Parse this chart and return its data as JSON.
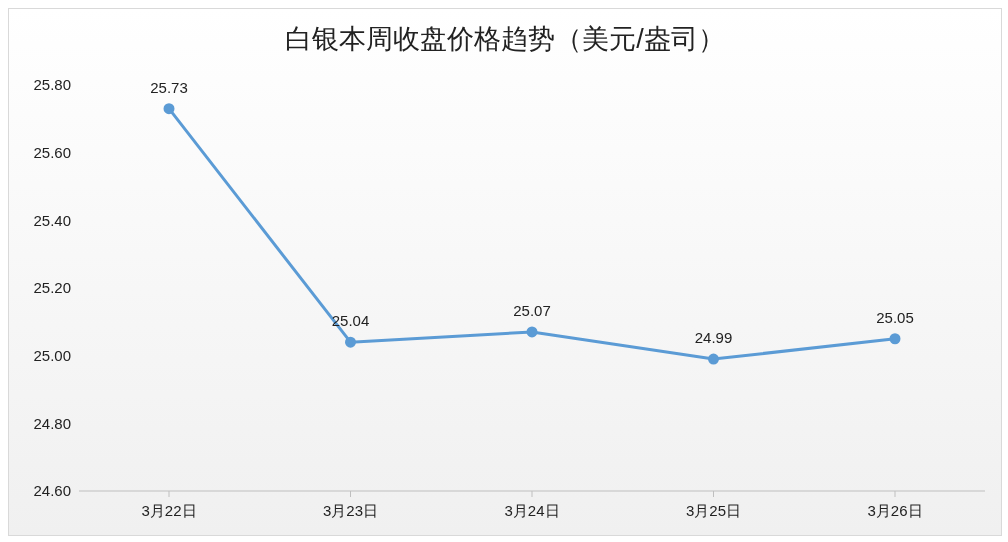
{
  "chart_data": {
    "type": "line",
    "title": "白银本周收盘价格趋势（美元/盎司）",
    "categories": [
      "3月22日",
      "3月23日",
      "3月24日",
      "3月25日",
      "3月26日"
    ],
    "series": [
      {
        "color": "#5b9bd5",
        "values": [
          25.73,
          25.04,
          25.07,
          24.99,
          25.05
        ]
      }
    ],
    "ylim": [
      24.6,
      25.8
    ],
    "yticks": [
      {
        "value": 24.6,
        "label": "24.60"
      },
      {
        "value": 24.8,
        "label": "24.80"
      },
      {
        "value": 25.0,
        "label": "25.00"
      },
      {
        "value": 25.2,
        "label": "25.20"
      },
      {
        "value": 25.4,
        "label": "25.40"
      },
      {
        "value": 25.6,
        "label": "25.60"
      },
      {
        "value": 25.8,
        "label": "25.80"
      }
    ],
    "grid": false,
    "legend": false,
    "marker": "circle",
    "line_style": "solid",
    "data_labels": true
  }
}
